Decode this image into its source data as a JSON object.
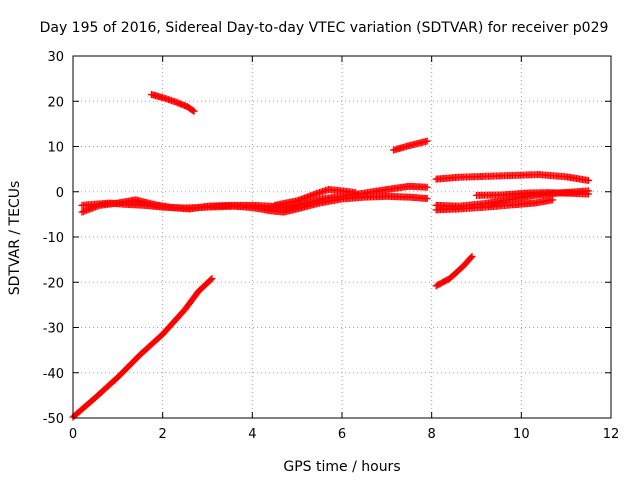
{
  "chart_data": {
    "type": "scatter",
    "title": "Day 195 of 2016, Sidereal Day-to-day VTEC variation (SDTVAR) for receiver p029",
    "xlabel": "GPS time / hours",
    "ylabel": "SDTVAR / TECUs",
    "xlim": [
      0,
      12
    ],
    "ylim": [
      -50,
      30
    ],
    "x_ticks": [
      0,
      2,
      4,
      6,
      8,
      10,
      12
    ],
    "y_ticks": [
      -50,
      -40,
      -30,
      -20,
      -10,
      0,
      10,
      20,
      30
    ],
    "x_tick_labels": [
      "0",
      "2",
      "4",
      "6",
      "8",
      "10",
      "12"
    ],
    "y_tick_labels": [
      "-50",
      "-40",
      "-30",
      "-20",
      "-10",
      "0",
      "10",
      "20",
      "30"
    ],
    "grid": true,
    "marker": "plus",
    "series": [
      {
        "color": "#ff0000",
        "points": [
          [
            0.0,
            -49.8
          ],
          [
            0.5,
            -45.5
          ],
          [
            1.0,
            -41.0
          ],
          [
            1.5,
            -36.0
          ],
          [
            2.0,
            -31.5
          ],
          [
            2.5,
            -26.0
          ],
          [
            2.8,
            -22.0
          ],
          [
            3.1,
            -19.2
          ]
        ]
      },
      {
        "color": "#ff0000",
        "points": [
          [
            1.75,
            21.5
          ],
          [
            2.0,
            20.8
          ],
          [
            2.3,
            19.8
          ],
          [
            2.55,
            18.8
          ],
          [
            2.7,
            17.8
          ]
        ]
      },
      {
        "color": "#ff0000",
        "points": [
          [
            0.2,
            -4.5
          ],
          [
            0.6,
            -3.0
          ],
          [
            1.0,
            -2.5
          ],
          [
            1.4,
            -1.8
          ],
          [
            1.8,
            -2.8
          ],
          [
            2.2,
            -3.5
          ],
          [
            2.6,
            -3.8
          ],
          [
            3.0,
            -3.2
          ],
          [
            3.5,
            -3.0
          ],
          [
            4.0,
            -3.0
          ],
          [
            4.4,
            -3.2
          ],
          [
            4.8,
            -3.5
          ],
          [
            5.2,
            -2.5
          ],
          [
            5.6,
            -1.5
          ],
          [
            6.0,
            -1.0
          ],
          [
            6.5,
            -0.3
          ],
          [
            7.0,
            0.5
          ],
          [
            7.5,
            1.2
          ],
          [
            7.9,
            1.0
          ]
        ]
      },
      {
        "color": "#ff0000",
        "points": [
          [
            0.2,
            -3.0
          ],
          [
            0.8,
            -2.5
          ],
          [
            1.2,
            -2.8
          ],
          [
            1.6,
            -3.0
          ],
          [
            2.0,
            -3.4
          ],
          [
            2.5,
            -3.6
          ],
          [
            3.0,
            -3.4
          ],
          [
            3.6,
            -3.2
          ],
          [
            4.0,
            -3.5
          ],
          [
            4.4,
            -4.2
          ],
          [
            4.7,
            -4.5
          ],
          [
            5.0,
            -3.8
          ],
          [
            5.5,
            -2.5
          ],
          [
            6.0,
            -1.6
          ],
          [
            6.5,
            -1.2
          ],
          [
            7.0,
            -1.0
          ],
          [
            7.5,
            -1.2
          ],
          [
            7.9,
            -1.5
          ]
        ]
      },
      {
        "color": "#ff0000",
        "points": [
          [
            4.5,
            -3.0
          ],
          [
            5.0,
            -2.0
          ],
          [
            5.4,
            -0.5
          ],
          [
            5.7,
            0.5
          ],
          [
            6.0,
            0.2
          ],
          [
            6.3,
            -0.2
          ]
        ]
      },
      {
        "color": "#ff0000",
        "points": [
          [
            7.15,
            9.2
          ],
          [
            7.5,
            10.2
          ],
          [
            7.9,
            11.2
          ]
        ]
      },
      {
        "color": "#ff0000",
        "points": [
          [
            8.1,
            2.8
          ],
          [
            8.6,
            3.2
          ],
          [
            9.2,
            3.4
          ],
          [
            9.8,
            3.6
          ],
          [
            10.4,
            3.8
          ],
          [
            11.0,
            3.3
          ],
          [
            11.5,
            2.5
          ]
        ]
      },
      {
        "color": "#ff0000",
        "points": [
          [
            8.1,
            -4.0
          ],
          [
            8.6,
            -3.8
          ],
          [
            9.2,
            -3.4
          ],
          [
            9.8,
            -2.9
          ],
          [
            10.3,
            -2.5
          ],
          [
            10.7,
            -1.8
          ]
        ]
      },
      {
        "color": "#ff0000",
        "points": [
          [
            9.0,
            -0.8
          ],
          [
            9.6,
            -0.7
          ],
          [
            10.1,
            -0.3
          ],
          [
            10.6,
            -0.2
          ],
          [
            11.0,
            -0.3
          ],
          [
            11.5,
            -0.5
          ]
        ]
      },
      {
        "color": "#ff0000",
        "points": [
          [
            8.1,
            -3.0
          ],
          [
            8.6,
            -3.2
          ],
          [
            9.2,
            -2.6
          ],
          [
            9.8,
            -1.6
          ],
          [
            10.3,
            -0.8
          ],
          [
            10.8,
            -0.3
          ],
          [
            11.5,
            0.2
          ]
        ]
      },
      {
        "color": "#ff0000",
        "points": [
          [
            8.1,
            -20.8
          ],
          [
            8.4,
            -19.2
          ],
          [
            8.7,
            -16.5
          ],
          [
            8.9,
            -14.3
          ]
        ]
      }
    ]
  }
}
